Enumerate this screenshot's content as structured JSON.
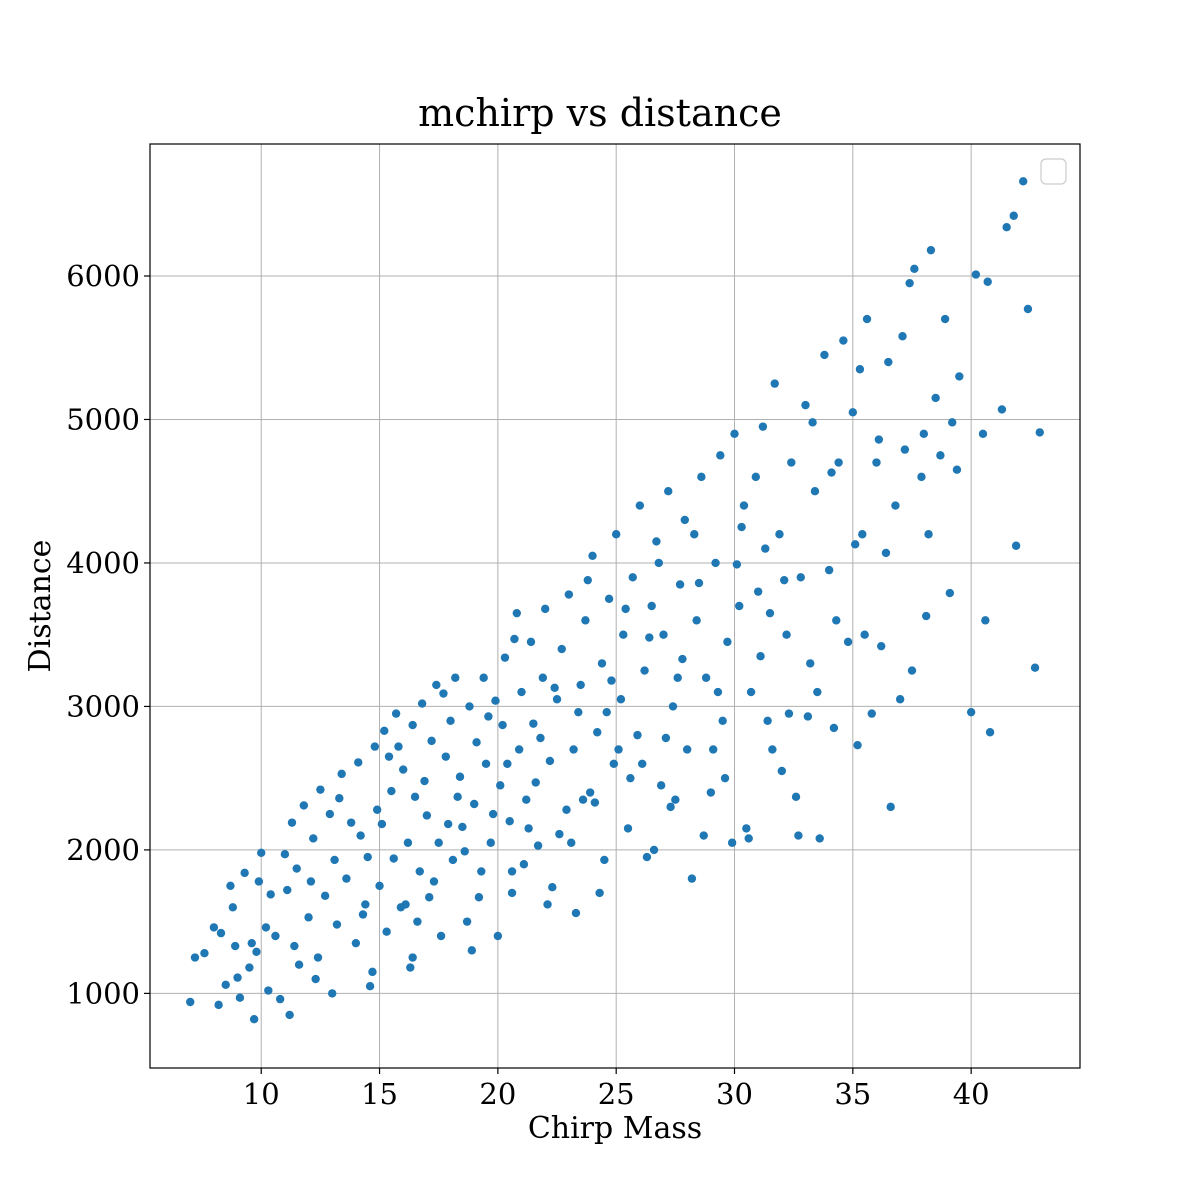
{
  "chart_data": {
    "type": "scatter",
    "title": "mchirp vs distance",
    "xlabel": "Chirp Mass",
    "ylabel": "Distance",
    "xlim": [
      5.3,
      44.6
    ],
    "ylim": [
      480,
      6920
    ],
    "xticks": [
      10,
      15,
      20,
      25,
      30,
      35,
      40
    ],
    "yticks": [
      1000,
      2000,
      3000,
      4000,
      5000,
      6000
    ],
    "grid": true,
    "legend": "top-right",
    "marker_color": "#1f77b4",
    "series": [
      {
        "points": [
          [
            7.0,
            940
          ],
          [
            7.2,
            1250
          ],
          [
            7.6,
            1280
          ],
          [
            8.0,
            1460
          ],
          [
            8.3,
            1420
          ],
          [
            8.2,
            920
          ],
          [
            8.5,
            1060
          ],
          [
            8.7,
            1750
          ],
          [
            8.8,
            1600
          ],
          [
            8.9,
            1330
          ],
          [
            9.0,
            1110
          ],
          [
            9.1,
            970
          ],
          [
            9.3,
            1840
          ],
          [
            9.6,
            1350
          ],
          [
            9.7,
            820
          ],
          [
            9.8,
            1290
          ],
          [
            9.9,
            1780
          ],
          [
            10.0,
            1980
          ],
          [
            10.2,
            1460
          ],
          [
            10.3,
            1020
          ],
          [
            10.6,
            1400
          ],
          [
            10.8,
            960
          ],
          [
            11.0,
            1970
          ],
          [
            11.1,
            1720
          ],
          [
            11.2,
            850
          ],
          [
            11.3,
            2190
          ],
          [
            11.5,
            1870
          ],
          [
            11.6,
            1200
          ],
          [
            11.8,
            2310
          ],
          [
            12.0,
            1530
          ],
          [
            12.2,
            2080
          ],
          [
            12.4,
            1250
          ],
          [
            12.5,
            2420
          ],
          [
            12.7,
            1680
          ],
          [
            12.9,
            2250
          ],
          [
            13.0,
            1000
          ],
          [
            13.2,
            1480
          ],
          [
            13.4,
            2530
          ],
          [
            13.6,
            1800
          ],
          [
            13.8,
            2190
          ],
          [
            14.0,
            1350
          ],
          [
            14.1,
            2610
          ],
          [
            14.3,
            1550
          ],
          [
            14.5,
            1950
          ],
          [
            14.6,
            1050
          ],
          [
            14.8,
            2720
          ],
          [
            14.9,
            2280
          ],
          [
            15.0,
            1750
          ],
          [
            15.2,
            2830
          ],
          [
            15.3,
            1430
          ],
          [
            15.5,
            2410
          ],
          [
            15.6,
            1940
          ],
          [
            15.7,
            2950
          ],
          [
            15.9,
            1600
          ],
          [
            16.0,
            2560
          ],
          [
            16.2,
            2050
          ],
          [
            16.3,
            1180
          ],
          [
            16.4,
            2870
          ],
          [
            16.5,
            2370
          ],
          [
            16.7,
            1850
          ],
          [
            16.8,
            3020
          ],
          [
            17.0,
            2240
          ],
          [
            17.1,
            1670
          ],
          [
            17.2,
            2760
          ],
          [
            17.4,
            3150
          ],
          [
            17.5,
            2050
          ],
          [
            17.6,
            1400
          ],
          [
            17.8,
            2650
          ],
          [
            18.0,
            2900
          ],
          [
            18.1,
            1930
          ],
          [
            18.2,
            3200
          ],
          [
            18.4,
            2510
          ],
          [
            18.5,
            2160
          ],
          [
            18.7,
            1500
          ],
          [
            18.8,
            3000
          ],
          [
            19.0,
            2320
          ],
          [
            19.1,
            2750
          ],
          [
            19.3,
            1850
          ],
          [
            19.4,
            3200
          ],
          [
            19.5,
            2600
          ],
          [
            19.7,
            2050
          ],
          [
            19.9,
            3040
          ],
          [
            20.0,
            1400
          ],
          [
            20.1,
            2450
          ],
          [
            20.2,
            2870
          ],
          [
            20.3,
            3340
          ],
          [
            20.5,
            2200
          ],
          [
            20.6,
            1850
          ],
          [
            20.8,
            3650
          ],
          [
            20.9,
            2700
          ],
          [
            21.0,
            3100
          ],
          [
            21.2,
            2350
          ],
          [
            21.4,
            3450
          ],
          [
            21.5,
            2880
          ],
          [
            21.7,
            2030
          ],
          [
            21.9,
            3200
          ],
          [
            22.0,
            3680
          ],
          [
            22.2,
            2620
          ],
          [
            22.3,
            1740
          ],
          [
            22.5,
            3050
          ],
          [
            22.7,
            3400
          ],
          [
            22.9,
            2280
          ],
          [
            23.0,
            3780
          ],
          [
            23.2,
            2700
          ],
          [
            23.3,
            1560
          ],
          [
            23.5,
            3150
          ],
          [
            23.7,
            3600
          ],
          [
            23.9,
            2400
          ],
          [
            24.0,
            4050
          ],
          [
            24.2,
            2820
          ],
          [
            24.4,
            3300
          ],
          [
            24.5,
            1930
          ],
          [
            24.7,
            3750
          ],
          [
            24.9,
            2600
          ],
          [
            25.0,
            4200
          ],
          [
            25.2,
            3050
          ],
          [
            25.3,
            3500
          ],
          [
            25.5,
            2150
          ],
          [
            25.7,
            3900
          ],
          [
            25.9,
            2800
          ],
          [
            26.0,
            4400
          ],
          [
            26.2,
            3250
          ],
          [
            26.3,
            1950
          ],
          [
            26.5,
            3700
          ],
          [
            26.7,
            4150
          ],
          [
            26.9,
            2450
          ],
          [
            27.0,
            3500
          ],
          [
            27.2,
            4500
          ],
          [
            27.4,
            3000
          ],
          [
            27.5,
            2350
          ],
          [
            27.7,
            3850
          ],
          [
            27.9,
            4300
          ],
          [
            28.0,
            2700
          ],
          [
            28.2,
            1800
          ],
          [
            28.4,
            3600
          ],
          [
            28.6,
            4600
          ],
          [
            28.8,
            3200
          ],
          [
            29.0,
            2400
          ],
          [
            29.2,
            4000
          ],
          [
            29.4,
            4750
          ],
          [
            29.5,
            2900
          ],
          [
            29.7,
            3450
          ],
          [
            29.9,
            2050
          ],
          [
            30.0,
            4900
          ],
          [
            30.2,
            3700
          ],
          [
            30.3,
            4250
          ],
          [
            30.5,
            2150
          ],
          [
            30.7,
            3100
          ],
          [
            30.9,
            4600
          ],
          [
            31.0,
            3800
          ],
          [
            31.2,
            4950
          ],
          [
            31.4,
            2900
          ],
          [
            31.5,
            3650
          ],
          [
            31.7,
            5250
          ],
          [
            31.9,
            4200
          ],
          [
            32.0,
            2550
          ],
          [
            32.2,
            3500
          ],
          [
            32.4,
            4700
          ],
          [
            32.6,
            2370
          ],
          [
            32.8,
            3900
          ],
          [
            33.0,
            5100
          ],
          [
            33.2,
            3300
          ],
          [
            33.4,
            4500
          ],
          [
            33.6,
            2080
          ],
          [
            33.8,
            5450
          ],
          [
            34.0,
            3950
          ],
          [
            34.2,
            2850
          ],
          [
            34.4,
            4700
          ],
          [
            34.6,
            5550
          ],
          [
            34.8,
            3450
          ],
          [
            35.0,
            5050
          ],
          [
            35.2,
            2730
          ],
          [
            35.4,
            4200
          ],
          [
            35.6,
            5700
          ],
          [
            35.8,
            2950
          ],
          [
            36.0,
            4700
          ],
          [
            36.2,
            3420
          ],
          [
            36.5,
            5400
          ],
          [
            36.6,
            2300
          ],
          [
            36.8,
            4400
          ],
          [
            37.0,
            3050
          ],
          [
            37.1,
            5580
          ],
          [
            37.4,
            5950
          ],
          [
            37.5,
            3250
          ],
          [
            37.6,
            6050
          ],
          [
            37.9,
            4600
          ],
          [
            38.1,
            3630
          ],
          [
            38.3,
            6180
          ],
          [
            38.5,
            5150
          ],
          [
            38.7,
            4750
          ],
          [
            38.9,
            5700
          ],
          [
            39.1,
            3790
          ],
          [
            39.2,
            4980
          ],
          [
            39.5,
            5300
          ],
          [
            40.0,
            2960
          ],
          [
            40.2,
            6010
          ],
          [
            40.5,
            4900
          ],
          [
            40.6,
            3600
          ],
          [
            40.7,
            5960
          ],
          [
            40.8,
            2820
          ],
          [
            41.3,
            5070
          ],
          [
            41.5,
            6340
          ],
          [
            41.8,
            6420
          ],
          [
            41.9,
            4120
          ],
          [
            42.2,
            6660
          ],
          [
            42.4,
            5770
          ],
          [
            42.7,
            3270
          ],
          [
            42.9,
            4910
          ],
          [
            12.3,
            1100
          ],
          [
            13.1,
            1930
          ],
          [
            14.2,
            2100
          ],
          [
            15.4,
            2650
          ],
          [
            16.1,
            1620
          ],
          [
            16.9,
            2480
          ],
          [
            17.3,
            1780
          ],
          [
            18.3,
            2370
          ],
          [
            19.2,
            1670
          ],
          [
            20.4,
            2600
          ],
          [
            21.1,
            1900
          ],
          [
            21.8,
            2780
          ],
          [
            22.6,
            2110
          ],
          [
            23.4,
            2960
          ],
          [
            24.1,
            2330
          ],
          [
            24.8,
            3180
          ],
          [
            25.6,
            2500
          ],
          [
            26.4,
            3480
          ],
          [
            27.1,
            2780
          ],
          [
            27.8,
            3330
          ],
          [
            28.5,
            3860
          ],
          [
            29.3,
            3100
          ],
          [
            30.1,
            3990
          ],
          [
            31.1,
            3350
          ],
          [
            32.1,
            3880
          ],
          [
            33.1,
            2930
          ],
          [
            34.1,
            4630
          ],
          [
            35.1,
            4130
          ],
          [
            36.1,
            4860
          ],
          [
            37.2,
            4790
          ],
          [
            38.2,
            4200
          ],
          [
            39.4,
            4650
          ],
          [
            9.5,
            1180
          ],
          [
            10.4,
            1690
          ],
          [
            11.4,
            1330
          ],
          [
            12.1,
            1780
          ],
          [
            13.3,
            2360
          ],
          [
            14.4,
            1620
          ],
          [
            15.1,
            2180
          ],
          [
            15.8,
            2720
          ],
          [
            16.6,
            1500
          ],
          [
            17.7,
            3090
          ],
          [
            18.6,
            1990
          ],
          [
            19.6,
            2930
          ],
          [
            20.7,
            3470
          ],
          [
            21.6,
            2470
          ],
          [
            22.4,
            3130
          ],
          [
            23.1,
            2050
          ],
          [
            23.8,
            3880
          ],
          [
            24.6,
            2960
          ],
          [
            25.4,
            3680
          ],
          [
            26.1,
            2600
          ],
          [
            26.8,
            4000
          ],
          [
            27.6,
            3200
          ],
          [
            28.3,
            4200
          ],
          [
            29.1,
            2700
          ],
          [
            30.4,
            4400
          ],
          [
            31.3,
            4100
          ],
          [
            32.3,
            2950
          ],
          [
            33.3,
            4980
          ],
          [
            34.3,
            3600
          ],
          [
            35.3,
            5350
          ],
          [
            36.4,
            4070
          ],
          [
            38.0,
            4900
          ],
          [
            14.7,
            1150
          ],
          [
            16.4,
            1250
          ],
          [
            18.9,
            1300
          ],
          [
            20.6,
            1700
          ],
          [
            22.1,
            1620
          ],
          [
            24.3,
            1700
          ],
          [
            26.6,
            2000
          ],
          [
            28.7,
            2100
          ],
          [
            30.6,
            2080
          ],
          [
            32.7,
            2100
          ],
          [
            17.9,
            2180
          ],
          [
            19.8,
            2250
          ],
          [
            21.3,
            2150
          ],
          [
            23.6,
            2350
          ],
          [
            25.1,
            2700
          ],
          [
            27.3,
            2300
          ],
          [
            29.6,
            2500
          ],
          [
            31.6,
            2700
          ],
          [
            33.5,
            3100
          ],
          [
            35.5,
            3500
          ]
        ]
      }
    ]
  }
}
